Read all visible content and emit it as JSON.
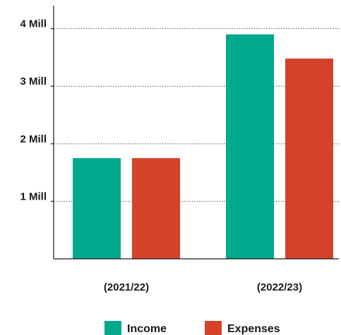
{
  "chart_data": {
    "type": "bar",
    "categories": [
      "(2021/22)",
      "(2022/23)"
    ],
    "series": [
      {
        "name": "Income",
        "values": [
          1.75,
          3.9
        ],
        "color": "#00A88C"
      },
      {
        "name": "Expenses",
        "values": [
          1.75,
          3.48
        ],
        "color": "#D4422A"
      }
    ],
    "y_ticks": [
      {
        "value": 1,
        "label": "1 Mill"
      },
      {
        "value": 2,
        "label": "2 Mill"
      },
      {
        "value": 3,
        "label": "3 Mill"
      },
      {
        "value": 4,
        "label": "4 Mill"
      }
    ],
    "ylim": [
      0,
      4.4
    ],
    "grid": "dotted horizontal",
    "legend": "bottom-center"
  }
}
